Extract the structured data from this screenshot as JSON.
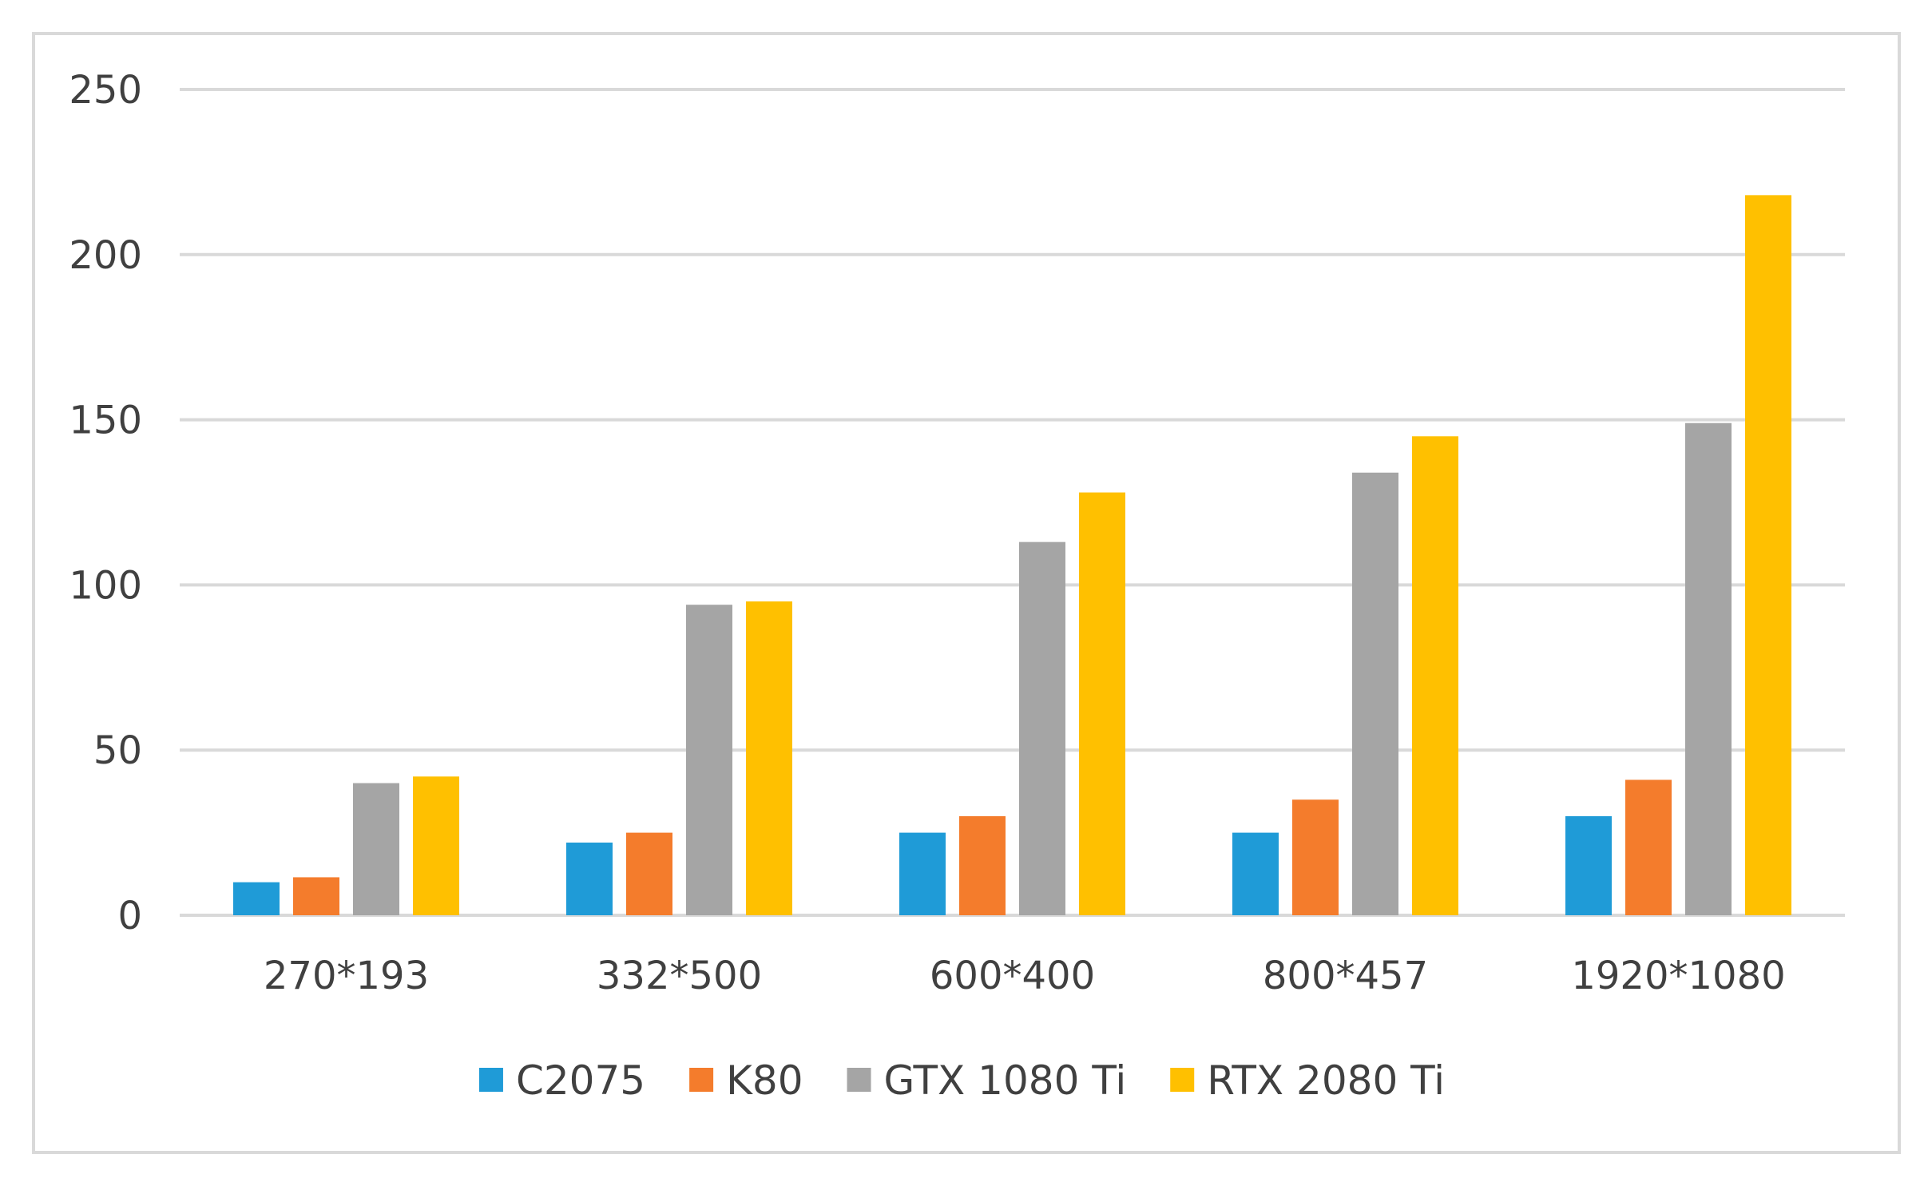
{
  "chart_data": {
    "type": "bar",
    "title": "",
    "xlabel": "",
    "ylabel": "",
    "ylim": [
      0,
      250
    ],
    "yticks": [
      0,
      50,
      100,
      150,
      200,
      250
    ],
    "ytick_labels": [
      "0",
      "50",
      "100",
      "150",
      "200",
      "250"
    ],
    "grid": true,
    "legend_position": "bottom",
    "categories": [
      "270*193",
      "332*500",
      "600*400",
      "800*457",
      "1920*1080"
    ],
    "series": [
      {
        "name": "C2075",
        "color": "#1f9bd7",
        "values": [
          10,
          22,
          25,
          25,
          30
        ]
      },
      {
        "name": "K80",
        "color": "#f47c2c",
        "values": [
          11.5,
          25,
          30,
          35,
          41
        ]
      },
      {
        "name": "GTX 1080 Ti",
        "color": "#a5a5a5",
        "values": [
          40,
          94,
          113,
          134,
          149
        ]
      },
      {
        "name": "RTX 2080 Ti",
        "color": "#ffc000",
        "values": [
          42,
          95,
          128,
          145,
          218
        ]
      }
    ]
  }
}
